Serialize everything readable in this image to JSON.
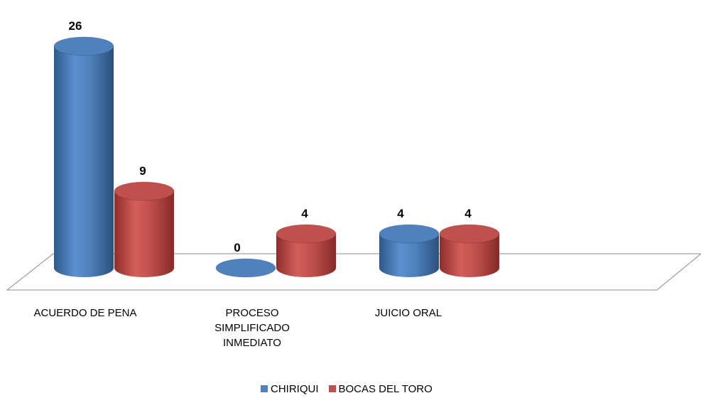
{
  "chart_data": {
    "type": "bar",
    "categories": [
      "ACUERDO DE PENA",
      "PROCESO\nSIMPLIFICADO\nINMEDIATO",
      "JUICIO ORAL"
    ],
    "series": [
      {
        "name": "CHIRIQUI",
        "values": [
          26,
          0,
          4
        ],
        "color": "#4F81BD"
      },
      {
        "name": "BOCAS DEL TORO",
        "values": [
          9,
          4,
          4
        ],
        "color": "#C0504D"
      }
    ],
    "data_labels": true,
    "legend_position": "bottom",
    "grid": false,
    "three_d": true
  }
}
